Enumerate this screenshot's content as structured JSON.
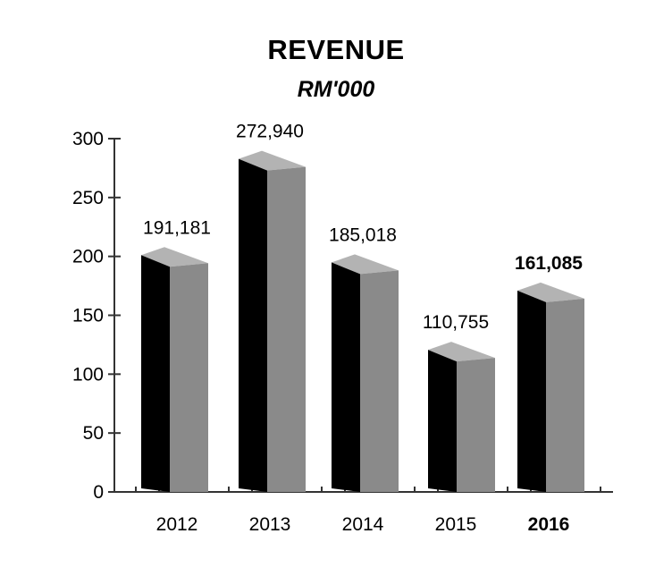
{
  "chart_data": {
    "type": "bar",
    "title": "REVENUE",
    "subtitle": "RM'000",
    "categories": [
      "2012",
      "2013",
      "2014",
      "2015",
      "2016"
    ],
    "values": [
      191181,
      272940,
      185018,
      110755,
      161085
    ],
    "value_labels": [
      "191,181",
      "272,940",
      "185,018",
      "110,755",
      "161,085"
    ],
    "highlight_index": 4,
    "ylim": [
      0,
      300
    ],
    "yticks": [
      "0",
      "50",
      "100",
      "150",
      "200",
      "250",
      "300"
    ],
    "grid": false,
    "colors": {
      "bar_front": "#000000",
      "bar_side": "#8a8a8a",
      "bar_top": "#b3b3b3",
      "axis": "#333333"
    }
  }
}
